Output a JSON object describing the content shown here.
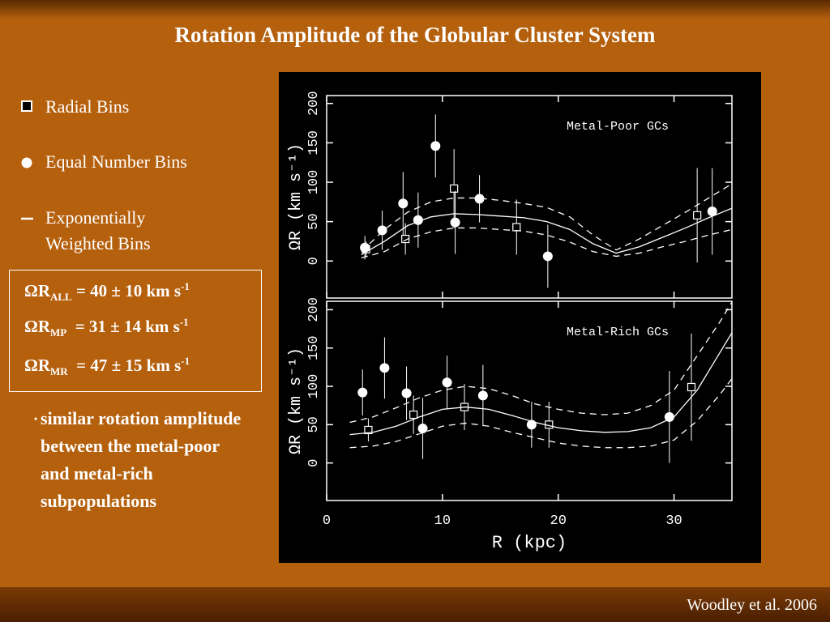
{
  "title": "Rotation Amplitude of the Globular Cluster System",
  "equations": [
    {
      "main": "ΩR",
      "sub": "ALL",
      "rest": " = 40 ± 10 km s",
      "sup": "-1"
    },
    {
      "main": "ΩR",
      "sub": "MP",
      "rest": "  = 31 ± 14 km s",
      "sup": "-1"
    },
    {
      "main": "ΩR",
      "sub": "MR",
      "rest": "  = 47 ± 15 km s",
      "sup": "-1"
    }
  ],
  "bullet": "similar rotation amplitude between the metal-poor and metal-rich subpopulations",
  "citation": "Woodley et al. 2006",
  "chart_data": [
    {
      "type": "scatter",
      "annotation": "Metal-Poor GCs",
      "ylabel": "ΩR (km s⁻¹)",
      "xlim": [
        0,
        35
      ],
      "xticks": [
        0,
        10,
        20,
        30
      ],
      "ylim": [
        -47,
        210
      ],
      "yticks": [
        0,
        50,
        100,
        150,
        200
      ],
      "series": [
        {
          "name": "Radial Bins",
          "marker": "square",
          "color": "#ffffff",
          "x": [
            3.4,
            6.8,
            11.0,
            16.4,
            32.0
          ],
          "values": [
            15,
            28,
            92,
            43,
            58
          ],
          "errors": [
            10,
            20,
            50,
            35,
            60
          ]
        },
        {
          "name": "Equal Number Bins",
          "marker": "circle",
          "color": "#ffffff",
          "x": [
            3.3,
            4.8,
            6.6,
            7.9,
            9.4,
            11.1,
            13.2,
            19.1,
            33.3
          ],
          "values": [
            17,
            39,
            73,
            52,
            146,
            49,
            79,
            6,
            63
          ],
          "errors": [
            15,
            25,
            40,
            35,
            40,
            40,
            30,
            40,
            55
          ]
        },
        {
          "name": "Exponentially Weighted Bins",
          "marker": "line",
          "color": "#ffffff",
          "x": [
            3,
            5,
            7,
            9,
            11,
            13,
            15,
            17,
            19,
            21,
            23,
            25,
            27,
            29,
            31,
            33,
            35
          ],
          "values": [
            8,
            25,
            45,
            56,
            60,
            59,
            57,
            55,
            50,
            40,
            22,
            10,
            18,
            30,
            42,
            55,
            67
          ],
          "upper": [
            12,
            40,
            62,
            75,
            80,
            80,
            77,
            73,
            68,
            56,
            33,
            14,
            28,
            45,
            62,
            80,
            98
          ],
          "lower": [
            4,
            12,
            28,
            37,
            42,
            42,
            40,
            38,
            33,
            24,
            12,
            6,
            10,
            18,
            25,
            33,
            40
          ]
        }
      ]
    },
    {
      "type": "scatter",
      "annotation": "Metal-Rich GCs",
      "ylabel": "ΩR (km s⁻¹)",
      "xlabel": "R (kpc)",
      "xlim": [
        0,
        35
      ],
      "xticks": [
        0,
        10,
        20,
        30
      ],
      "ylim": [
        -49,
        211
      ],
      "yticks": [
        0,
        50,
        100,
        150,
        200
      ],
      "series": [
        {
          "name": "Radial Bins",
          "marker": "square",
          "color": "#ffffff",
          "x": [
            3.6,
            7.5,
            11.9,
            19.2,
            31.5
          ],
          "values": [
            43,
            63,
            73,
            50,
            99
          ],
          "errors": [
            15,
            25,
            30,
            30,
            70
          ]
        },
        {
          "name": "Equal Number Bins",
          "marker": "circle",
          "color": "#ffffff",
          "x": [
            3.1,
            5.0,
            6.9,
            8.3,
            10.4,
            13.5,
            17.7,
            29.6
          ],
          "values": [
            92,
            124,
            91,
            45,
            105,
            88,
            50,
            60
          ],
          "errors": [
            30,
            40,
            35,
            40,
            35,
            40,
            30,
            60
          ]
        },
        {
          "name": "Exponentially Weighted Bins",
          "marker": "line",
          "color": "#ffffff",
          "x": [
            2,
            4,
            6,
            8,
            10,
            12,
            14,
            16,
            18,
            20,
            22,
            24,
            26,
            28,
            30,
            32,
            34,
            35
          ],
          "values": [
            37,
            40,
            48,
            60,
            70,
            73,
            70,
            62,
            53,
            46,
            42,
            40,
            41,
            46,
            60,
            95,
            145,
            170
          ],
          "upper": [
            53,
            60,
            72,
            85,
            95,
            100,
            97,
            88,
            77,
            70,
            65,
            63,
            65,
            75,
            95,
            140,
            185,
            210
          ],
          "lower": [
            20,
            22,
            28,
            38,
            48,
            52,
            48,
            40,
            33,
            26,
            22,
            20,
            20,
            22,
            30,
            55,
            90,
            110
          ]
        }
      ]
    }
  ]
}
